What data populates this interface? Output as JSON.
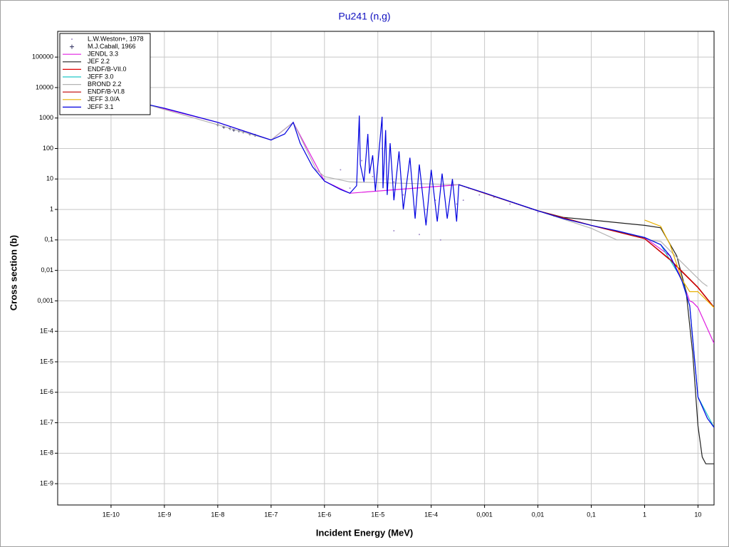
{
  "chart_data": {
    "type": "line",
    "title": "Pu241 (n,g)",
    "xlabel": "Incident Energy (MeV)",
    "ylabel": "Cross section (b)",
    "xscale": "log",
    "yscale": "log",
    "grid": true,
    "legend": "upper left",
    "xlim": [
      1e-11,
      20
    ],
    "ylim": [
      2e-10,
      700000
    ],
    "xticks": [
      {
        "value": 1e-10,
        "label": "1E-10"
      },
      {
        "value": 1e-09,
        "label": "1E-9"
      },
      {
        "value": 1e-08,
        "label": "1E-8"
      },
      {
        "value": 1e-07,
        "label": "1E-7"
      },
      {
        "value": 1e-06,
        "label": "1E-6"
      },
      {
        "value": 1e-05,
        "label": "1E-5"
      },
      {
        "value": 0.0001,
        "label": "1E-4"
      },
      {
        "value": 0.001,
        "label": "0,001"
      },
      {
        "value": 0.01,
        "label": "0,01"
      },
      {
        "value": 0.1,
        "label": "0,1"
      },
      1,
      10
    ],
    "yticks": [
      100000,
      10000,
      1000,
      100,
      10,
      1,
      {
        "value": 0.1,
        "label": "0,1"
      },
      {
        "value": 0.01,
        "label": "0,01"
      },
      {
        "value": 0.001,
        "label": "0,001"
      },
      {
        "value": 0.0001,
        "label": "1E-4"
      },
      {
        "value": 1e-05,
        "label": "1E-5"
      },
      {
        "value": 1e-06,
        "label": "1E-6"
      },
      {
        "value": 1e-07,
        "label": "1E-7"
      },
      {
        "value": 1e-08,
        "label": "1E-8"
      },
      {
        "value": 1e-09,
        "label": "1E-9"
      }
    ],
    "series": [
      {
        "name": "L.W.Weston+, 1978",
        "type": "scatter",
        "marker": "dot",
        "color": "#a08cc8",
        "x": [
          1e-06,
          1.5e-06,
          2e-06,
          3e-06,
          5e-06,
          8e-06,
          1.2e-05,
          2e-05,
          3e-05,
          5e-05,
          8e-05,
          0.00012,
          0.0002,
          0.0003,
          0.0005,
          0.0008,
          0.0015,
          0.003,
          0.006,
          0.01,
          0.02,
          0.03,
          2e-05,
          6e-05,
          0.00015,
          0.0004
        ],
        "values": [
          10,
          6,
          20,
          5,
          40,
          12,
          100,
          8,
          3,
          5,
          1,
          2,
          0.6,
          1.5,
          5,
          3,
          2.5,
          1.5,
          1.2,
          0.8,
          0.6,
          0.5,
          0.2,
          0.15,
          0.1,
          2
        ]
      },
      {
        "name": "M.J.Caball, 1966",
        "type": "scatter",
        "marker": "plus",
        "color": "#303060",
        "x": [
          1e-08,
          1.3e-08,
          1.7e-08,
          2e-08,
          2.5e-08,
          3e-08,
          4e-08,
          5e-08
        ],
        "values": [
          600,
          500,
          450,
          400,
          380,
          350,
          300,
          270
        ]
      },
      {
        "name": "JENDL 3.3",
        "color": "#e020e0",
        "x": [
          4e-10,
          1e-08,
          1e-07,
          2.6e-07,
          1e-06,
          3e-06,
          0.00033,
          0.01,
          0.1,
          1,
          3,
          5,
          7,
          8,
          10,
          20
        ],
        "values": [
          3000,
          720,
          190,
          720,
          8.5,
          3.4,
          6.5,
          0.9,
          0.3,
          0.12,
          0.03,
          0.005,
          0.001,
          0.0009,
          0.0006,
          4e-05
        ]
      },
      {
        "name": "JEF 2.2",
        "color": "#202020",
        "x": [
          0.00033,
          0.01,
          0.03,
          0.1,
          1,
          2,
          4,
          6,
          8,
          10,
          12,
          14,
          20
        ],
        "values": [
          6.5,
          0.9,
          0.55,
          0.45,
          0.3,
          0.25,
          0.03,
          0.002,
          1.7e-05,
          8e-08,
          7.5e-09,
          4.5e-09,
          4.5e-09
        ]
      },
      {
        "name": "ENDF/B-VII.0",
        "color": "#e00000",
        "x": [
          0.00033,
          0.01,
          0.1,
          1,
          3,
          10,
          20
        ],
        "values": [
          6.5,
          0.9,
          0.3,
          0.11,
          0.022,
          0.0027,
          0.0006
        ]
      },
      {
        "name": "JEFF 3.0",
        "color": "#20c8c8",
        "x": [
          0.00033,
          0.01,
          0.1,
          1,
          2,
          5,
          7,
          10,
          20
        ],
        "values": [
          6.5,
          0.9,
          0.3,
          0.12,
          0.07,
          0.005,
          0.0007,
          7e-07,
          7e-08
        ]
      },
      {
        "name": "BROND 2.2",
        "color": "#b4b4b4",
        "x": [
          4e-10,
          1e-07,
          2.6e-07,
          7e-07,
          1e-06,
          3e-06,
          0.00033,
          0.01,
          0.1,
          0.3,
          1,
          2,
          5,
          8,
          12,
          15
        ],
        "values": [
          3000,
          190,
          720,
          20,
          12,
          8,
          6.5,
          0.9,
          0.24,
          0.1,
          0.1,
          0.09,
          0.018,
          0.008,
          0.004,
          0.003
        ]
      },
      {
        "name": "ENDF/B-VI.8",
        "color": "#c00000",
        "x": [
          0.00033,
          0.01,
          0.1,
          1,
          3,
          10,
          20
        ],
        "values": [
          6.5,
          0.9,
          0.3,
          0.11,
          0.023,
          0.0028,
          0.00062
        ]
      },
      {
        "name": "JEFF 3.0/A",
        "color": "#e8b000",
        "x": [
          1,
          2,
          3,
          5,
          7,
          10,
          20
        ],
        "values": [
          0.45,
          0.28,
          0.07,
          0.005,
          0.002,
          0.002,
          0.0006
        ]
      },
      {
        "name": "JEFF 3.1",
        "color": "#0000e0",
        "x": [
          4e-10,
          1e-09,
          1e-08,
          1e-07,
          1.8e-07,
          2.6e-07,
          3.5e-07,
          6e-07,
          1e-06,
          2e-06,
          3e-06,
          4e-06,
          4.5e-06,
          4.7e-06,
          5.5e-06,
          6.5e-06,
          7e-06,
          8e-06,
          9e-06,
          1e-05,
          1.2e-05,
          1.25e-05,
          1.4e-05,
          1.5e-05,
          1.7e-05,
          2e-05,
          2.5e-05,
          3e-05,
          4e-05,
          5e-05,
          6e-05,
          8e-05,
          0.0001,
          0.00013,
          0.00016,
          0.0002,
          0.00025,
          0.0003,
          0.00033,
          0.001,
          0.01,
          0.03,
          0.1,
          0.3,
          1,
          2,
          3,
          5,
          7,
          8,
          10,
          15,
          20
        ],
        "values": [
          3000,
          2100,
          720,
          190,
          300,
          720,
          150,
          25,
          8.5,
          4.5,
          3.4,
          6,
          1200,
          30,
          8,
          300,
          15,
          60,
          4,
          30,
          1100,
          5,
          400,
          3,
          150,
          2,
          80,
          1,
          50,
          0.5,
          30,
          0.3,
          20,
          0.4,
          15,
          0.5,
          10,
          0.4,
          6.5,
          3.5,
          0.9,
          0.5,
          0.3,
          0.2,
          0.12,
          0.07,
          0.03,
          0.0045,
          0.0007,
          5e-05,
          7e-07,
          1.4e-07,
          7e-08
        ]
      }
    ]
  }
}
